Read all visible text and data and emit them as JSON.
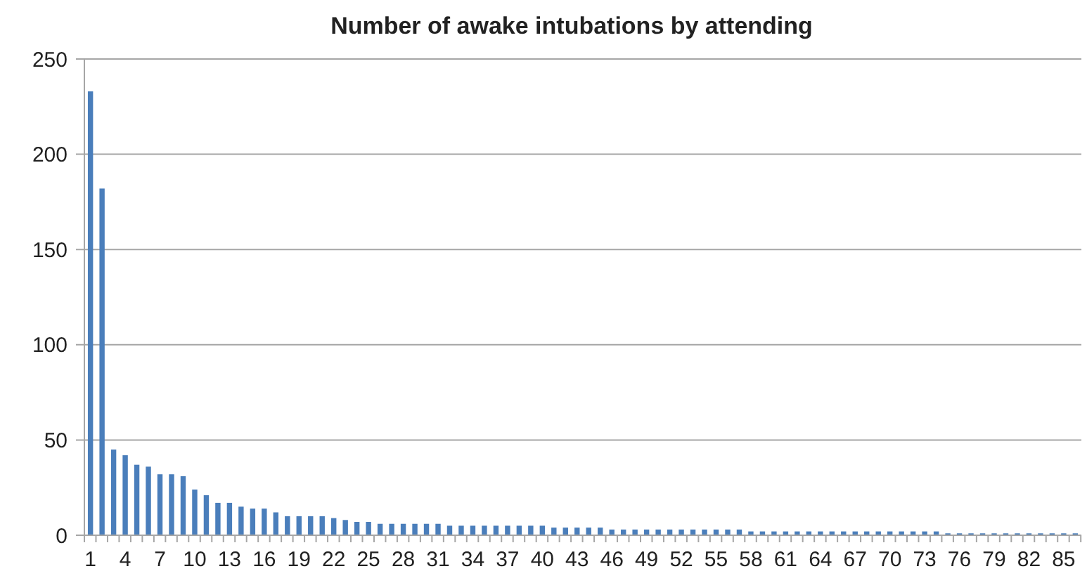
{
  "chart_data": {
    "type": "bar",
    "title": "Number of awake intubations by attending",
    "categories": [
      "1",
      null,
      null,
      "4",
      null,
      null,
      "7",
      null,
      null,
      "10",
      null,
      null,
      "13",
      null,
      null,
      "16",
      null,
      null,
      "19",
      null,
      null,
      "22",
      null,
      null,
      "25",
      null,
      null,
      "28",
      null,
      null,
      "31",
      null,
      null,
      "34",
      null,
      null,
      "37",
      null,
      null,
      "40",
      null,
      null,
      "43",
      null,
      null,
      "46",
      null,
      null,
      "49",
      null,
      null,
      "52",
      null,
      null,
      "55",
      null,
      null,
      "58",
      null,
      null,
      "61",
      null,
      null,
      "64",
      null,
      null,
      "67",
      null,
      null,
      "70",
      null,
      null,
      "73",
      null,
      null,
      "76",
      null,
      null,
      "79",
      null,
      null,
      "82",
      null,
      null,
      "85",
      null
    ],
    "values": [
      233,
      182,
      45,
      42,
      37,
      36,
      32,
      32,
      31,
      24,
      21,
      17,
      17,
      15,
      14,
      14,
      12,
      10,
      10,
      10,
      10,
      9,
      8,
      7,
      7,
      6,
      6,
      6,
      6,
      6,
      6,
      5,
      5,
      5,
      5,
      5,
      5,
      5,
      5,
      5,
      4,
      4,
      4,
      4,
      4,
      3,
      3,
      3,
      3,
      3,
      3,
      3,
      3,
      3,
      3,
      3,
      3,
      2,
      2,
      2,
      2,
      2,
      2,
      2,
      2,
      2,
      2,
      2,
      2,
      2,
      2,
      2,
      2,
      2,
      1,
      1,
      1,
      1,
      1,
      1,
      1,
      1,
      1,
      1,
      1,
      1
    ],
    "color": "#4a7ebb",
    "ylim": [
      0,
      250
    ],
    "yticks": [
      0,
      50,
      100,
      150,
      200,
      250
    ],
    "grid": "y"
  }
}
